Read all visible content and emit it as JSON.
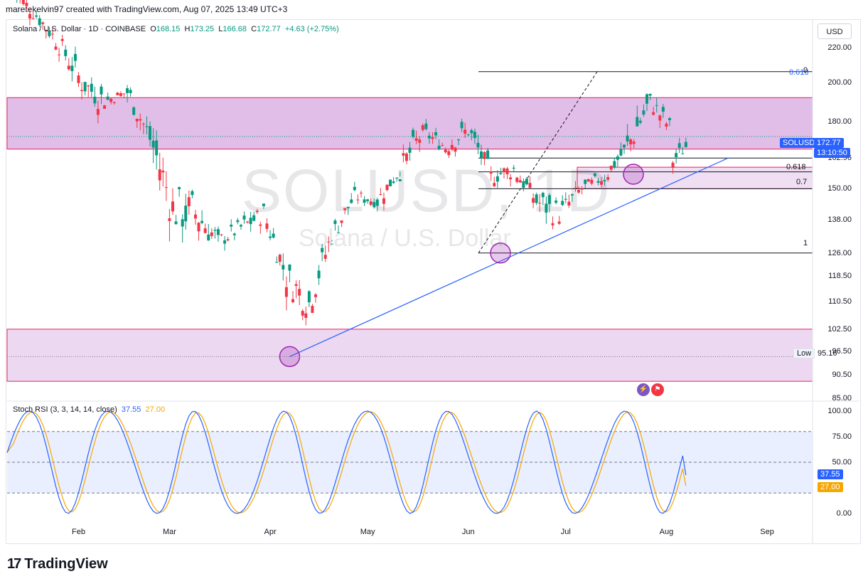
{
  "header": {
    "text": "maretekelvin97 created with TradingView.com, Aug 07, 2025 13:49 UTC+3"
  },
  "legend": {
    "symbol": "Solana / U.S. Dollar · 1D · COINBASE",
    "o_label": "O",
    "o": "168.15",
    "h_label": "H",
    "h": "173.25",
    "l_label": "L",
    "l": "166.68",
    "c_label": "C",
    "c": "172.77",
    "change": "+4.63 (+2.75%)"
  },
  "currency": "USD",
  "watermark": {
    "ticker": "SOLUSD, 1D",
    "name": "Solana / U.S. Dollar"
  },
  "price_axis": [
    "220.00",
    "200.00",
    "180.00",
    "162.96",
    "150.00",
    "138.00",
    "126.00",
    "118.50",
    "110.50",
    "102.50",
    "96.50",
    "90.50",
    "85.00"
  ],
  "last_price_tag": {
    "symbol": "SOLUSD",
    "price": "172.77",
    "countdown": "13:10:50"
  },
  "low_label": {
    "label": "Low",
    "value": "95.16"
  },
  "fib_labels": {
    "top": "0.618",
    "top2": "0",
    "f618": "0.618",
    "f07": "0.7",
    "f1": "1"
  },
  "rsi": {
    "title": "Stoch RSI (3, 3, 14, 14, close)",
    "k": "37.55",
    "d": "27.00",
    "axis": [
      "100.00",
      "75.00",
      "50.00",
      "0.00"
    ],
    "k_tag": "37.55",
    "d_tag": "27.00"
  },
  "time_axis": [
    "Feb",
    "Mar",
    "Apr",
    "May",
    "Jun",
    "Jul",
    "Aug",
    "Sep"
  ],
  "brand": "TradingView",
  "colors": {
    "up": "#089981",
    "down": "#f23645",
    "zone": "#9c27b0",
    "trend": "#2962ff",
    "rsi_k": "#2962ff",
    "rsi_d": "#f7a600"
  },
  "chart_data": {
    "type": "candlestick",
    "title": "Solana / U.S. Dollar · 1D · COINBASE",
    "ylim": [
      85,
      225
    ],
    "x_range": [
      "2025-01-10",
      "2025-09-15"
    ],
    "ohlc_weekly_approx": [
      {
        "date": "2025-01-12",
        "o": 255,
        "h": 262,
        "l": 232,
        "c": 240
      },
      {
        "date": "2025-01-19",
        "o": 240,
        "h": 250,
        "l": 218,
        "c": 222
      },
      {
        "date": "2025-01-26",
        "o": 222,
        "h": 235,
        "l": 196,
        "c": 200
      },
      {
        "date": "2025-02-02",
        "o": 200,
        "h": 210,
        "l": 170,
        "c": 190
      },
      {
        "date": "2025-02-09",
        "o": 190,
        "h": 205,
        "l": 188,
        "c": 195
      },
      {
        "date": "2025-02-16",
        "o": 195,
        "h": 200,
        "l": 165,
        "c": 172
      },
      {
        "date": "2025-02-23",
        "o": 172,
        "h": 180,
        "l": 130,
        "c": 142
      },
      {
        "date": "2025-03-02",
        "o": 142,
        "h": 180,
        "l": 128,
        "c": 140
      },
      {
        "date": "2025-03-09",
        "o": 140,
        "h": 142,
        "l": 112,
        "c": 130
      },
      {
        "date": "2025-03-16",
        "o": 130,
        "h": 140,
        "l": 123,
        "c": 135
      },
      {
        "date": "2025-03-23",
        "o": 135,
        "h": 148,
        "l": 128,
        "c": 140
      },
      {
        "date": "2025-03-30",
        "o": 140,
        "h": 142,
        "l": 115,
        "c": 118
      },
      {
        "date": "2025-04-06",
        "o": 118,
        "h": 122,
        "l": 95.16,
        "c": 110
      },
      {
        "date": "2025-04-13",
        "o": 110,
        "h": 135,
        "l": 108,
        "c": 132
      },
      {
        "date": "2025-04-20",
        "o": 132,
        "h": 152,
        "l": 130,
        "c": 147
      },
      {
        "date": "2025-04-27",
        "o": 147,
        "h": 155,
        "l": 140,
        "c": 145
      },
      {
        "date": "2025-05-04",
        "o": 145,
        "h": 160,
        "l": 140,
        "c": 158
      },
      {
        "date": "2025-05-11",
        "o": 158,
        "h": 185,
        "l": 155,
        "c": 175
      },
      {
        "date": "2025-05-18",
        "o": 175,
        "h": 182,
        "l": 162,
        "c": 168
      },
      {
        "date": "2025-05-25",
        "o": 168,
        "h": 188,
        "l": 163,
        "c": 176
      },
      {
        "date": "2025-06-01",
        "o": 176,
        "h": 178,
        "l": 150,
        "c": 155
      },
      {
        "date": "2025-06-08",
        "o": 155,
        "h": 168,
        "l": 146,
        "c": 158
      },
      {
        "date": "2025-06-15",
        "o": 158,
        "h": 160,
        "l": 138,
        "c": 145
      },
      {
        "date": "2025-06-22",
        "o": 145,
        "h": 155,
        "l": 126,
        "c": 140
      },
      {
        "date": "2025-06-29",
        "o": 140,
        "h": 158,
        "l": 136,
        "c": 150
      },
      {
        "date": "2025-07-06",
        "o": 150,
        "h": 160,
        "l": 145,
        "c": 155
      },
      {
        "date": "2025-07-13",
        "o": 155,
        "h": 172,
        "l": 150,
        "c": 168
      },
      {
        "date": "2025-07-20",
        "o": 168,
        "h": 206,
        "l": 166,
        "c": 190
      },
      {
        "date": "2025-07-27",
        "o": 190,
        "h": 196,
        "l": 170,
        "c": 175
      },
      {
        "date": "2025-08-03",
        "o": 162,
        "h": 175,
        "l": 155,
        "c": 172.77
      }
    ],
    "zones": [
      {
        "from": 167,
        "to": 192
      },
      {
        "from": 150,
        "to": 159
      },
      {
        "from": 89,
        "to": 102.5
      }
    ],
    "horizontal_levels": [
      206,
      163,
      157,
      150,
      126
    ],
    "trendline": [
      {
        "date": "2025-04-07",
        "price": 95.16
      },
      {
        "date": "2025-08-20",
        "price": 163
      }
    ],
    "stoch_rsi": {
      "ylim": [
        0,
        100
      ],
      "k_last": 37.55,
      "d_last": 27.0,
      "bands": [
        80,
        50,
        20
      ]
    }
  }
}
